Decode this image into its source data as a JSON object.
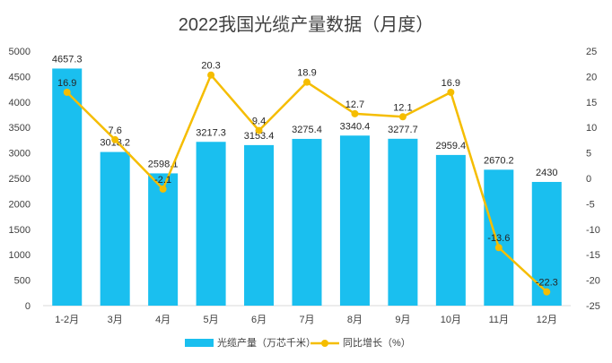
{
  "chart_data": {
    "type": "bar",
    "title": "2022我国光缆产量数据（月度）",
    "categories": [
      "1-2月",
      "3月",
      "4月",
      "5月",
      "6月",
      "7月",
      "8月",
      "9月",
      "10月",
      "11月",
      "12月"
    ],
    "series": [
      {
        "name": "光缆产量（万芯千米）",
        "type": "bar",
        "axis": "left",
        "color": "#1ABFEF",
        "values": [
          4657.3,
          3018.2,
          2598.1,
          3217.3,
          3153.4,
          3275.4,
          3340.4,
          3277.7,
          2959.4,
          2670.2,
          2430
        ],
        "labels": [
          "4657.3",
          "3018.2",
          "2598.1",
          "3217.3",
          "3153.4",
          "3275.4",
          "3340.4",
          "3277.7",
          "2959.4",
          "2670.2",
          "2430"
        ]
      },
      {
        "name": "同比增长（%）",
        "type": "line",
        "axis": "right",
        "color": "#F5BD00",
        "values": [
          16.9,
          7.6,
          -2.1,
          20.3,
          9.4,
          18.9,
          12.7,
          12.1,
          16.9,
          -13.6,
          -22.3
        ],
        "labels": [
          "16.9",
          "7.6",
          "-2.1",
          "20.3",
          "9.4",
          "18.9",
          "12.7",
          "12.1",
          "16.9",
          "-13.6",
          "-22.3"
        ]
      }
    ],
    "y_left": {
      "min": 0,
      "max": 5000,
      "ticks": [
        0,
        500,
        1000,
        1500,
        2000,
        2500,
        3000,
        3500,
        4000,
        4500,
        5000
      ],
      "tick_labels": [
        "0",
        "500",
        "1000",
        "1500",
        "2000",
        "2500",
        "3000",
        "3500",
        "4000",
        "4500",
        "5000"
      ]
    },
    "y_right": {
      "min": -25,
      "max": 25,
      "ticks": [
        -25,
        -20,
        -15,
        -10,
        -5,
        0,
        5,
        10,
        15,
        20,
        25
      ],
      "tick_labels": [
        "-25",
        "-20",
        "-15",
        "-10",
        "-5",
        "0",
        "5",
        "10",
        "15",
        "20",
        "25"
      ]
    },
    "grid": false,
    "legend_position": "bottom"
  }
}
